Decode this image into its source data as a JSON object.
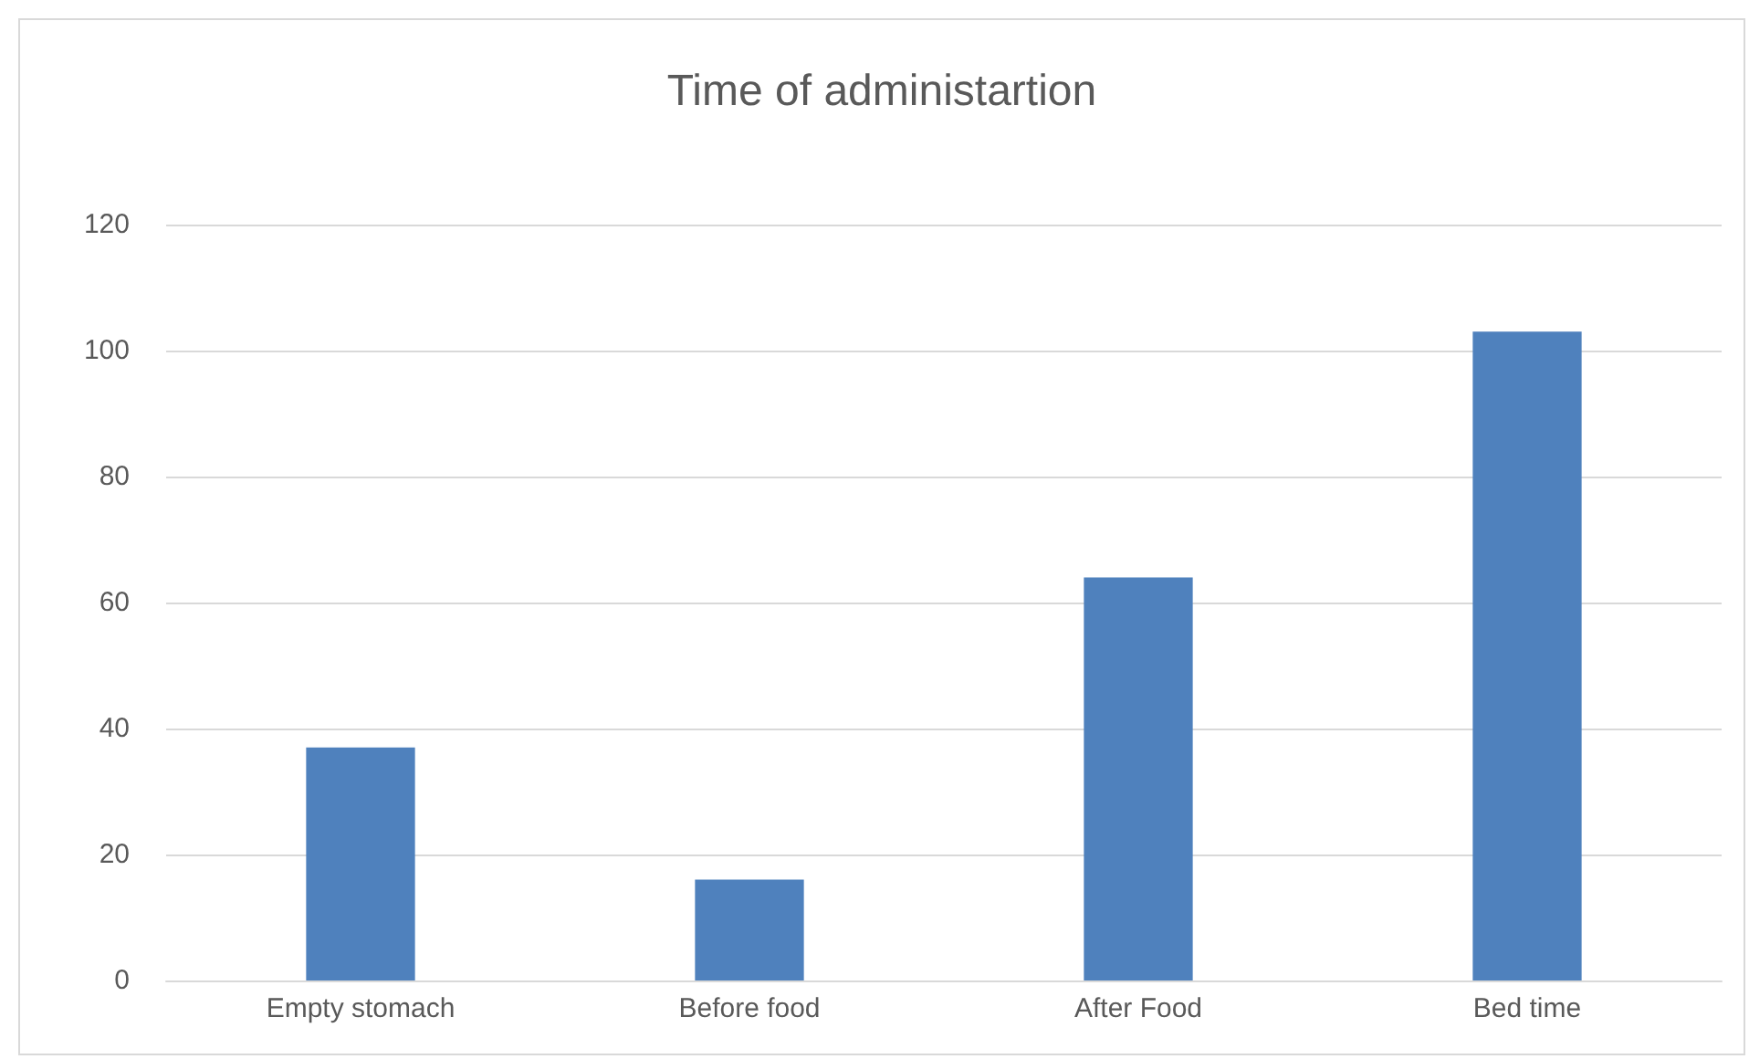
{
  "chart_data": {
    "type": "bar",
    "title": "Time of administartion",
    "categories": [
      "Empty stomach",
      "Before food",
      "After Food",
      "Bed time"
    ],
    "values": [
      37,
      16,
      64,
      103
    ],
    "color": "#4f81bd",
    "ylim": [
      0,
      120
    ],
    "yticks": [
      0,
      20,
      40,
      60,
      80,
      100,
      120
    ],
    "grid": "y"
  }
}
